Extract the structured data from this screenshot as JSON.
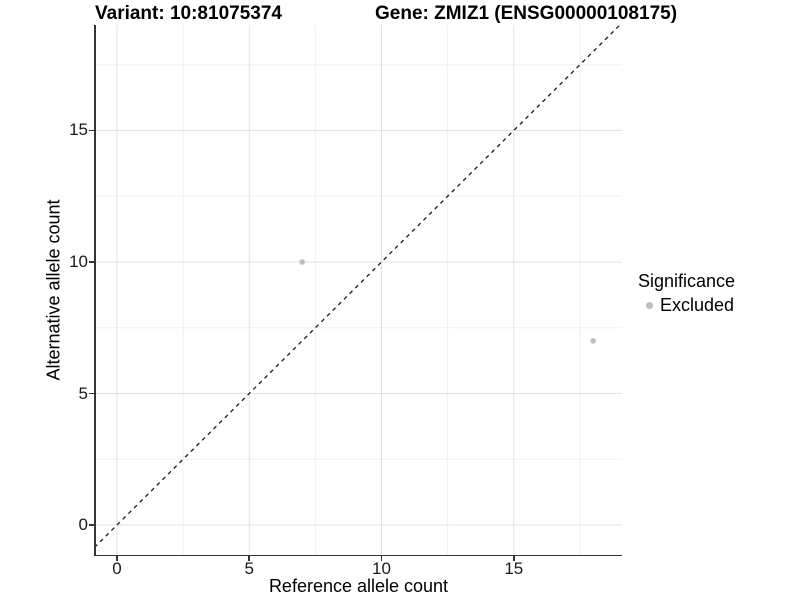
{
  "chart_data": {
    "type": "scatter",
    "titles": {
      "left": "Variant: 10:81075374",
      "right": "Gene: ZMIZ1 (ENSG00000108175)"
    },
    "xlabel": "Reference allele count",
    "ylabel": "Alternative allele count",
    "xlim": [
      -0.83,
      19.09
    ],
    "ylim": [
      -1.14,
      19.01
    ],
    "x_ticks": [
      0,
      5,
      10,
      15
    ],
    "y_ticks": [
      0,
      5,
      10,
      15
    ],
    "x_minor_ticks": [
      2.5,
      7.5,
      12.5,
      17.5
    ],
    "y_minor_ticks": [
      2.5,
      7.5,
      12.5,
      17.5
    ],
    "grid": {
      "major_color": "#e2e2e2",
      "minor_color": "#f0f0f0",
      "on": true
    },
    "reference_line": {
      "style": "dashed",
      "slope": 1,
      "intercept": 0,
      "color": "#1a1a1a"
    },
    "series": [
      {
        "name": "Excluded",
        "color": "#bebebe",
        "points": [
          {
            "x": 7,
            "y": 10
          },
          {
            "x": 18,
            "y": 7
          }
        ]
      }
    ],
    "legend": {
      "title": "Significance",
      "position": "right",
      "entries": [
        {
          "label": "Excluded",
          "color": "#bebebe"
        }
      ]
    }
  }
}
